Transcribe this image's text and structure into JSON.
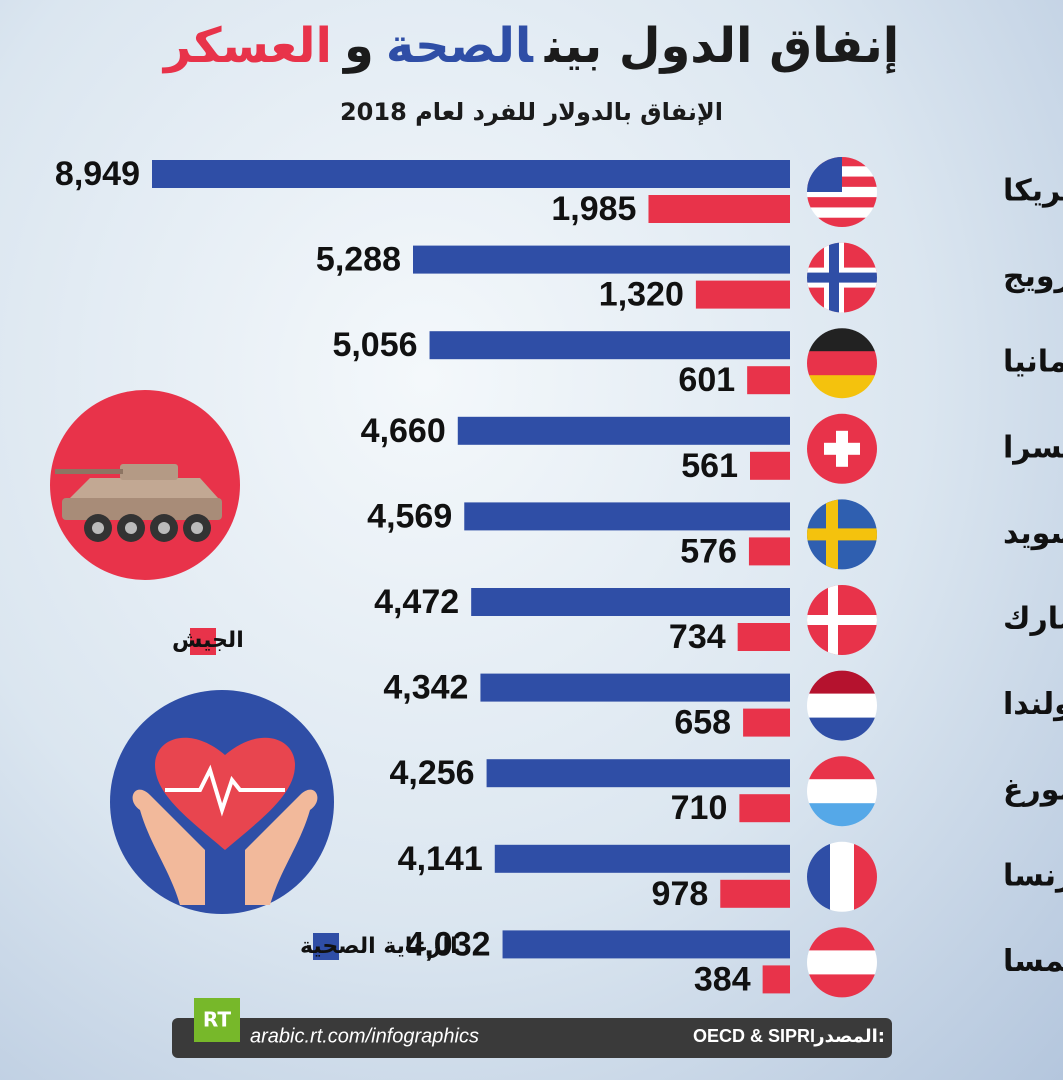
{
  "chart_data": {
    "type": "bar",
    "title_parts": [
      "إنفاق الدول بين",
      "الصحة",
      "و",
      "العسكر"
    ],
    "subtitle": "الإنفاق بالدولار للفرد لعام 2018",
    "categories": [
      "أمريكا",
      "النرويج",
      "ألمانيا",
      "سويسرا",
      "السويد",
      "الدنمارك",
      "هولندا",
      "لوكسمبورغ",
      "فرنسا",
      "النمسا"
    ],
    "series": [
      {
        "name": "الرعاية الصحية",
        "color": "#2f4ea6",
        "values": [
          8949,
          5288,
          5056,
          4660,
          4569,
          4472,
          4342,
          4256,
          4141,
          4032
        ],
        "value_labels": [
          "8,949",
          "5,288",
          "5,056",
          "4,660",
          "4,569",
          "4,472",
          "4,342",
          "4,256",
          "4,141",
          "4,032"
        ]
      },
      {
        "name": "الجيش",
        "color": "#e8334a",
        "values": [
          1985,
          1320,
          601,
          561,
          576,
          734,
          658,
          710,
          978,
          384
        ],
        "value_labels": [
          "1,985",
          "1,320",
          "601",
          "561",
          "576",
          "734",
          "658",
          "710",
          "978",
          "384"
        ]
      }
    ]
  },
  "footer": {
    "logo": "RT",
    "url": "arabic.rt.com/infographics",
    "source_label": "المصدر:",
    "source": "OECD & SIPRI"
  }
}
